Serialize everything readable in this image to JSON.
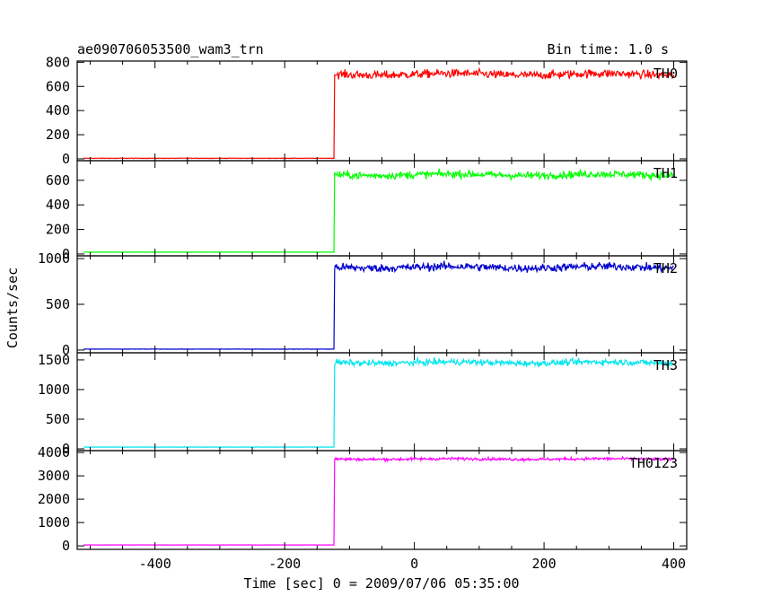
{
  "chart_data": {
    "type": "line",
    "title": "ae090706053500_wam3_trn",
    "bin_time": "Bin time: 1.0 s",
    "xlabel": "Time [sec] 0 = 2009/07/06 05:35:00",
    "ylabel": "Counts/sec",
    "xlim": [
      -520,
      420
    ],
    "x_ticks": [
      -400,
      -200,
      0,
      200,
      400
    ],
    "grid": false,
    "step_time": -123,
    "noise_end_time": 400,
    "panels": [
      {
        "name": "TH0",
        "color": "#ff0000",
        "baseline": 5,
        "level": 700,
        "noise": 25,
        "ylim": [
          -15,
          810
        ],
        "y_ticks": [
          0,
          200,
          400,
          600,
          800
        ]
      },
      {
        "name": "TH1",
        "color": "#00ff00",
        "baseline": 15,
        "level": 645,
        "noise": 22,
        "ylim": [
          -15,
          760
        ],
        "y_ticks": [
          0,
          200,
          400,
          600
        ]
      },
      {
        "name": "TH2",
        "color": "#0000cc",
        "baseline": 10,
        "level": 905,
        "noise": 32,
        "ylim": [
          -30,
          1030
        ],
        "y_ticks": [
          0,
          500,
          1000
        ]
      },
      {
        "name": "TH3",
        "color": "#00e5ee",
        "baseline": 30,
        "level": 1455,
        "noise": 38,
        "ylim": [
          -30,
          1620
        ],
        "y_ticks": [
          0,
          500,
          1000,
          1500
        ]
      },
      {
        "name": "TH0123",
        "color": "#ff00ff",
        "baseline": 40,
        "level": 3720,
        "noise": 45,
        "ylim": [
          -150,
          4080
        ],
        "y_ticks": [
          0,
          1000,
          2000,
          3000,
          4000
        ]
      }
    ]
  }
}
